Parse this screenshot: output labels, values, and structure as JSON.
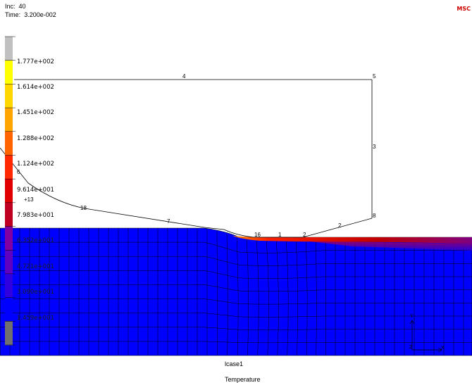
{
  "header": {
    "inc_label": "Inc:",
    "inc_value": "40",
    "time_label": "Time:",
    "time_value": "3.200e-002"
  },
  "logo_text": "MSC",
  "legend": {
    "labels": [
      "1.777e+002",
      "1.614e+002",
      "1.451e+002",
      "1.288e+002",
      "1.124e+002",
      "9.614e+001",
      "7.983e+001",
      "6.352e+001",
      "4.721e+001",
      "3.090e+001",
      "1.459e+001"
    ],
    "colors": [
      "#c0c0c0",
      "#ffff00",
      "#ffd700",
      "#ffa500",
      "#ff6400",
      "#ff2800",
      "#e00000",
      "#c00020",
      "#8000a0",
      "#6000c0",
      "#3000e0",
      "#0000ff",
      "#707070"
    ]
  },
  "model_labels": {
    "n4": "4",
    "n5": "5",
    "n3": "3",
    "n6": "6",
    "n13": "+13",
    "n18": "18",
    "n7": "7",
    "n16": "16",
    "n1": "1",
    "n2a": "2",
    "n2b": "2",
    "n8": "8"
  },
  "axis": {
    "y": "Y",
    "x": "X",
    "z": "Z"
  },
  "footer": {
    "case": "lcase1",
    "quantity": "Temperature"
  },
  "colors": {
    "mesh_fill": "#0000ff",
    "mesh_line": "#000000",
    "hot_zone": "#ff0000"
  }
}
